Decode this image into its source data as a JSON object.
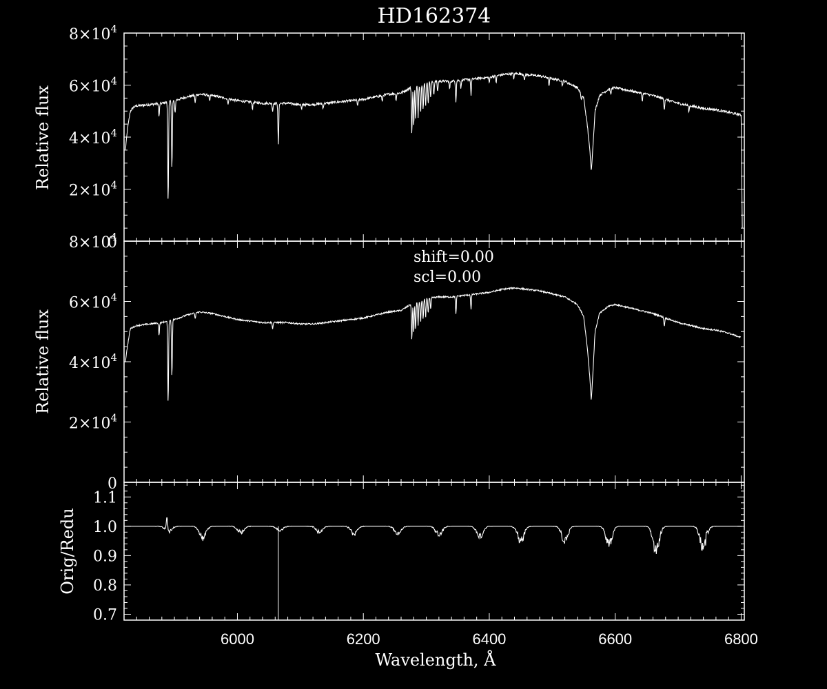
{
  "chart_data": [
    {
      "type": "line",
      "panel": "top",
      "title": "HD162374",
      "ylabel": "Relative flux",
      "xlim": [
        5820,
        6805
      ],
      "ylim": [
        0,
        80000
      ],
      "yticks": [
        {
          "value": 0,
          "mant": "0",
          "exp": ""
        },
        {
          "value": 20000,
          "mant": "2×10",
          "exp": "4"
        },
        {
          "value": 40000,
          "mant": "4×10",
          "exp": "4"
        },
        {
          "value": 60000,
          "mant": "6×10",
          "exp": "4"
        },
        {
          "value": 80000,
          "mant": "8×10",
          "exp": "4"
        }
      ],
      "series": [
        {
          "color": "#ffffff",
          "x": [
            5822,
            5826,
            5830,
            5835,
            5840,
            5860,
            5880,
            5900,
            5920,
            5940,
            5960,
            5980,
            6000,
            6020,
            6040,
            6060,
            6080,
            6100,
            6120,
            6140,
            6160,
            6180,
            6200,
            6220,
            6240,
            6260,
            6275,
            6290,
            6300,
            6320,
            6340,
            6360,
            6380,
            6400,
            6420,
            6440,
            6460,
            6480,
            6500,
            6520,
            6540,
            6550,
            6556,
            6560,
            6562,
            6564,
            6568,
            6575,
            6590,
            6600,
            6620,
            6640,
            6660,
            6680,
            6700,
            6720,
            6740,
            6760,
            6780,
            6800,
            6802
          ],
          "y": [
            35000,
            44000,
            50000,
            51500,
            52000,
            52500,
            53000,
            54000,
            55500,
            56500,
            56000,
            55000,
            54000,
            53500,
            53000,
            53000,
            53000,
            52500,
            52500,
            53000,
            53500,
            54000,
            54500,
            55500,
            56500,
            57000,
            59000,
            60000,
            61000,
            61500,
            61500,
            62000,
            62500,
            63000,
            64000,
            64500,
            64000,
            63500,
            62500,
            61500,
            59000,
            55000,
            44000,
            34000,
            27000,
            34000,
            50000,
            56000,
            58500,
            59000,
            58000,
            57000,
            56000,
            54500,
            53000,
            52000,
            51000,
            50500,
            49500,
            48500,
            0
          ]
        }
      ],
      "absorption_lines": [
        {
          "x": 5875.6,
          "depth": 5000
        },
        {
          "x": 5890,
          "depth": 39000
        },
        {
          "x": 5896,
          "depth": 26000
        },
        {
          "x": 5901,
          "depth": 5000
        },
        {
          "x": 5933,
          "depth": 3000
        },
        {
          "x": 5956,
          "depth": 2500
        },
        {
          "x": 5985,
          "depth": 2000
        },
        {
          "x": 6024,
          "depth": 2500
        },
        {
          "x": 6056,
          "depth": 3000
        },
        {
          "x": 6065,
          "depth": 16000
        },
        {
          "x": 6102,
          "depth": 2000
        },
        {
          "x": 6136,
          "depth": 2000
        },
        {
          "x": 6191,
          "depth": 2500
        },
        {
          "x": 6230,
          "depth": 2500
        },
        {
          "x": 6252,
          "depth": 2500
        },
        {
          "x": 6277,
          "depth": 18000
        },
        {
          "x": 6280,
          "depth": 15000
        },
        {
          "x": 6283,
          "depth": 13000
        },
        {
          "x": 6287,
          "depth": 12000
        },
        {
          "x": 6291,
          "depth": 11000
        },
        {
          "x": 6295,
          "depth": 10000
        },
        {
          "x": 6299,
          "depth": 9000
        },
        {
          "x": 6303,
          "depth": 8000
        },
        {
          "x": 6307,
          "depth": 6000
        },
        {
          "x": 6312,
          "depth": 5000
        },
        {
          "x": 6318,
          "depth": 4000
        },
        {
          "x": 6337,
          "depth": 3000
        },
        {
          "x": 6347,
          "depth": 8000
        },
        {
          "x": 6355,
          "depth": 3000
        },
        {
          "x": 6371,
          "depth": 6000
        },
        {
          "x": 6400,
          "depth": 2000
        },
        {
          "x": 6411,
          "depth": 2500
        },
        {
          "x": 6439,
          "depth": 2000
        },
        {
          "x": 6456,
          "depth": 2500
        },
        {
          "x": 6495,
          "depth": 3000
        },
        {
          "x": 6516,
          "depth": 2000
        },
        {
          "x": 6546,
          "depth": 2500
        },
        {
          "x": 6593,
          "depth": 2500
        },
        {
          "x": 6643,
          "depth": 3000
        },
        {
          "x": 6678,
          "depth": 4000
        },
        {
          "x": 6717,
          "depth": 2500
        }
      ]
    },
    {
      "type": "line",
      "panel": "middle",
      "ylabel": "Relative flux",
      "annotations": [
        "shift=0.00",
        "scl=0.00"
      ],
      "xlim": [
        5820,
        6805
      ],
      "ylim": [
        0,
        80000
      ],
      "yticks": [
        {
          "value": 0,
          "mant": "0",
          "exp": ""
        },
        {
          "value": 20000,
          "mant": "2×10",
          "exp": "4"
        },
        {
          "value": 40000,
          "mant": "4×10",
          "exp": "4"
        },
        {
          "value": 60000,
          "mant": "6×10",
          "exp": "4"
        },
        {
          "value": 80000,
          "mant": "8×10",
          "exp": "4"
        }
      ],
      "series": [
        {
          "color": "#ffffff",
          "x": [
            5822,
            5826,
            5830,
            5835,
            5840,
            5860,
            5880,
            5900,
            5920,
            5940,
            5960,
            5980,
            6000,
            6020,
            6040,
            6060,
            6080,
            6100,
            6120,
            6140,
            6160,
            6180,
            6200,
            6220,
            6240,
            6260,
            6275,
            6290,
            6300,
            6320,
            6340,
            6360,
            6380,
            6400,
            6420,
            6440,
            6460,
            6480,
            6500,
            6520,
            6540,
            6550,
            6556,
            6560,
            6562,
            6564,
            6568,
            6575,
            6590,
            6600,
            6620,
            6640,
            6660,
            6680,
            6700,
            6720,
            6740,
            6760,
            6780,
            6800
          ],
          "y": [
            40000,
            46000,
            51000,
            51500,
            52000,
            52500,
            53000,
            54000,
            55500,
            56500,
            56000,
            55000,
            54000,
            53500,
            53000,
            53000,
            53000,
            52500,
            52500,
            53000,
            53500,
            54000,
            54500,
            55500,
            56500,
            57000,
            59000,
            60000,
            61000,
            61500,
            61500,
            62000,
            62500,
            63000,
            64000,
            64500,
            64000,
            63500,
            62500,
            61500,
            59000,
            55000,
            44000,
            34000,
            27000,
            34000,
            50000,
            56000,
            58500,
            59000,
            58000,
            57000,
            56000,
            54500,
            53000,
            52000,
            51000,
            50500,
            49500,
            48000
          ]
        }
      ],
      "absorption_lines": [
        {
          "x": 5875.6,
          "depth": 4000
        },
        {
          "x": 5890,
          "depth": 28000
        },
        {
          "x": 5896,
          "depth": 19000
        },
        {
          "x": 5933,
          "depth": 2000
        },
        {
          "x": 6056,
          "depth": 2000
        },
        {
          "x": 6277,
          "depth": 12000
        },
        {
          "x": 6280,
          "depth": 10000
        },
        {
          "x": 6283,
          "depth": 9000
        },
        {
          "x": 6287,
          "depth": 8000
        },
        {
          "x": 6291,
          "depth": 7000
        },
        {
          "x": 6295,
          "depth": 6500
        },
        {
          "x": 6299,
          "depth": 6000
        },
        {
          "x": 6303,
          "depth": 5000
        },
        {
          "x": 6307,
          "depth": 4000
        },
        {
          "x": 6347,
          "depth": 6000
        },
        {
          "x": 6371,
          "depth": 5000
        },
        {
          "x": 6678,
          "depth": 3000
        }
      ]
    },
    {
      "type": "line",
      "panel": "bottom",
      "xlabel": "Wavelength, Å",
      "ylabel": "Orig/Redu",
      "xlim": [
        5820,
        6805
      ],
      "ylim": [
        0.68,
        1.15
      ],
      "xticks": [
        6000,
        6200,
        6400,
        6600,
        6800
      ],
      "yticks": [
        "0.7",
        "0.8",
        "0.9",
        "1.0",
        "1.1"
      ],
      "baseline": 1.0,
      "series_extent": [
        5822,
        6802
      ],
      "dips": [
        {
          "x": 5890,
          "depth": 0.02
        },
        {
          "x": 5945,
          "depth": 0.04
        },
        {
          "x": 6005,
          "depth": 0.02
        },
        {
          "x": 6068,
          "depth": 0.015
        },
        {
          "x": 6130,
          "depth": 0.02
        },
        {
          "x": 6185,
          "depth": 0.025
        },
        {
          "x": 6255,
          "depth": 0.025
        },
        {
          "x": 6320,
          "depth": 0.03
        },
        {
          "x": 6385,
          "depth": 0.035
        },
        {
          "x": 6450,
          "depth": 0.05
        },
        {
          "x": 6520,
          "depth": 0.05
        },
        {
          "x": 6590,
          "depth": 0.06
        },
        {
          "x": 6665,
          "depth": 0.08
        },
        {
          "x": 6740,
          "depth": 0.08
        }
      ],
      "spikes": [
        {
          "x": 6065,
          "low": 0.68
        }
      ],
      "bumps": [
        {
          "x": 5888,
          "height": 0.05
        },
        {
          "x": 6745,
          "height": 0.03
        }
      ]
    }
  ]
}
